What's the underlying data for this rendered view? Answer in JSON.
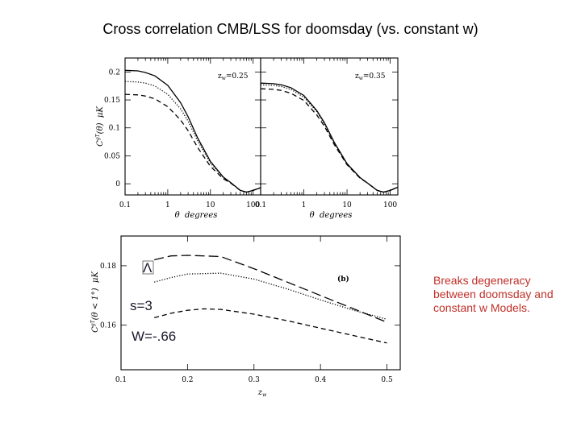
{
  "slide": {
    "title": "Cross correlation CMB/LSS for doomsday (vs. constant w)",
    "note": "Breaks degeneracy between doomsday and constant w Models."
  },
  "overlay": {
    "lambda": "Λ",
    "s_label": "s=3",
    "w_label": "W=-.66"
  },
  "chart_data": [
    {
      "type": "line",
      "panel": "top-left",
      "annotation": "z_w=0.25",
      "xlabel": "θ degrees",
      "ylabel": "C^{gT}(θ) μK",
      "xscale": "log",
      "xlim": [
        0.1,
        150
      ],
      "ylim": [
        -0.02,
        0.225
      ],
      "xticks": [
        0.1,
        1,
        10,
        100
      ],
      "xtick_labels": [
        "0.1",
        "1",
        "10",
        "100"
      ],
      "yticks": [
        0,
        0.05,
        0.1,
        0.15,
        0.2
      ],
      "ytick_labels": [
        "0",
        "0.05",
        "0.1",
        "0.15",
        "0.2"
      ],
      "series": [
        {
          "style": "solid",
          "x": [
            0.1,
            0.2,
            0.3,
            0.5,
            1,
            2,
            3,
            5,
            10,
            20,
            30,
            50,
            70,
            100,
            150
          ],
          "y": [
            0.203,
            0.202,
            0.199,
            0.193,
            0.176,
            0.145,
            0.12,
            0.082,
            0.04,
            0.012,
            0.002,
            -0.012,
            -0.015,
            -0.012,
            -0.007
          ]
        },
        {
          "style": "dotted",
          "x": [
            0.1,
            0.2,
            0.3,
            0.5,
            1,
            2,
            3,
            5,
            10,
            20,
            30,
            50,
            70,
            100,
            150
          ],
          "y": [
            0.183,
            0.182,
            0.18,
            0.175,
            0.16,
            0.134,
            0.112,
            0.077,
            0.037,
            0.011,
            0.002,
            -0.012,
            -0.015,
            -0.012,
            -0.007
          ]
        },
        {
          "style": "dashed",
          "x": [
            0.1,
            0.2,
            0.3,
            0.5,
            1,
            2,
            3,
            5,
            10,
            20,
            30,
            50,
            70,
            100,
            150
          ],
          "y": [
            0.16,
            0.159,
            0.157,
            0.152,
            0.138,
            0.114,
            0.095,
            0.065,
            0.031,
            0.009,
            0.001,
            -0.012,
            -0.015,
            -0.012,
            -0.007
          ]
        }
      ]
    },
    {
      "type": "line",
      "panel": "top-right",
      "annotation": "z_w=0.35",
      "xlabel": "θ degrees",
      "xscale": "log",
      "xlim": [
        0.1,
        150
      ],
      "ylim": [
        -0.02,
        0.225
      ],
      "xticks": [
        0.1,
        1,
        10,
        100
      ],
      "xtick_labels": [
        "0.1",
        "1",
        "10",
        "100"
      ],
      "series": [
        {
          "style": "solid",
          "x": [
            0.1,
            0.2,
            0.3,
            0.5,
            1,
            2,
            3,
            5,
            10,
            20,
            30,
            50,
            70,
            100,
            150
          ],
          "y": [
            0.18,
            0.179,
            0.177,
            0.172,
            0.158,
            0.131,
            0.109,
            0.075,
            0.036,
            0.011,
            0.001,
            -0.012,
            -0.015,
            -0.012,
            -0.006
          ]
        },
        {
          "style": "dotted",
          "x": [
            0.1,
            0.2,
            0.3,
            0.5,
            1,
            2,
            3,
            5,
            10,
            20,
            30,
            50,
            70,
            100,
            150
          ],
          "y": [
            0.177,
            0.176,
            0.174,
            0.169,
            0.155,
            0.129,
            0.107,
            0.074,
            0.035,
            0.011,
            0.001,
            -0.012,
            -0.015,
            -0.012,
            -0.006
          ]
        },
        {
          "style": "dashed",
          "x": [
            0.1,
            0.2,
            0.3,
            0.5,
            1,
            2,
            3,
            5,
            10,
            20,
            30,
            50,
            70,
            100,
            150
          ],
          "y": [
            0.17,
            0.169,
            0.167,
            0.162,
            0.149,
            0.123,
            0.103,
            0.071,
            0.034,
            0.01,
            0.001,
            -0.012,
            -0.015,
            -0.012,
            -0.006
          ]
        }
      ]
    },
    {
      "type": "line",
      "panel": "bottom",
      "annotation": "(b)",
      "xlabel": "z_w",
      "ylabel": "C^{gT}(θ < 1°) μK",
      "xlim": [
        0.1,
        0.52
      ],
      "ylim": [
        0.145,
        0.19
      ],
      "xticks": [
        0.1,
        0.2,
        0.3,
        0.4,
        0.5
      ],
      "xtick_labels": [
        "0.1",
        "0.2",
        "0.3",
        "0.4",
        "0.5"
      ],
      "yticks": [
        0.16,
        0.18
      ],
      "ytick_labels": [
        "0.16",
        "0.18"
      ],
      "series": [
        {
          "style": "long-dash",
          "x": [
            0.15,
            0.175,
            0.2,
            0.25,
            0.3,
            0.35,
            0.4,
            0.45,
            0.5
          ],
          "y": [
            0.182,
            0.1833,
            0.1835,
            0.1831,
            0.179,
            0.1745,
            0.17,
            0.1655,
            0.161
          ]
        },
        {
          "style": "dotted",
          "x": [
            0.15,
            0.175,
            0.2,
            0.25,
            0.3,
            0.35,
            0.4,
            0.45,
            0.5
          ],
          "y": [
            0.1745,
            0.176,
            0.1772,
            0.1775,
            0.1755,
            0.1722,
            0.1685,
            0.165,
            0.162
          ]
        },
        {
          "style": "dashed",
          "x": [
            0.15,
            0.175,
            0.2,
            0.225,
            0.25,
            0.3,
            0.35,
            0.4,
            0.45,
            0.5
          ],
          "y": [
            0.1625,
            0.164,
            0.165,
            0.1655,
            0.1653,
            0.1637,
            0.1615,
            0.159,
            0.1565,
            0.154
          ]
        }
      ]
    }
  ]
}
